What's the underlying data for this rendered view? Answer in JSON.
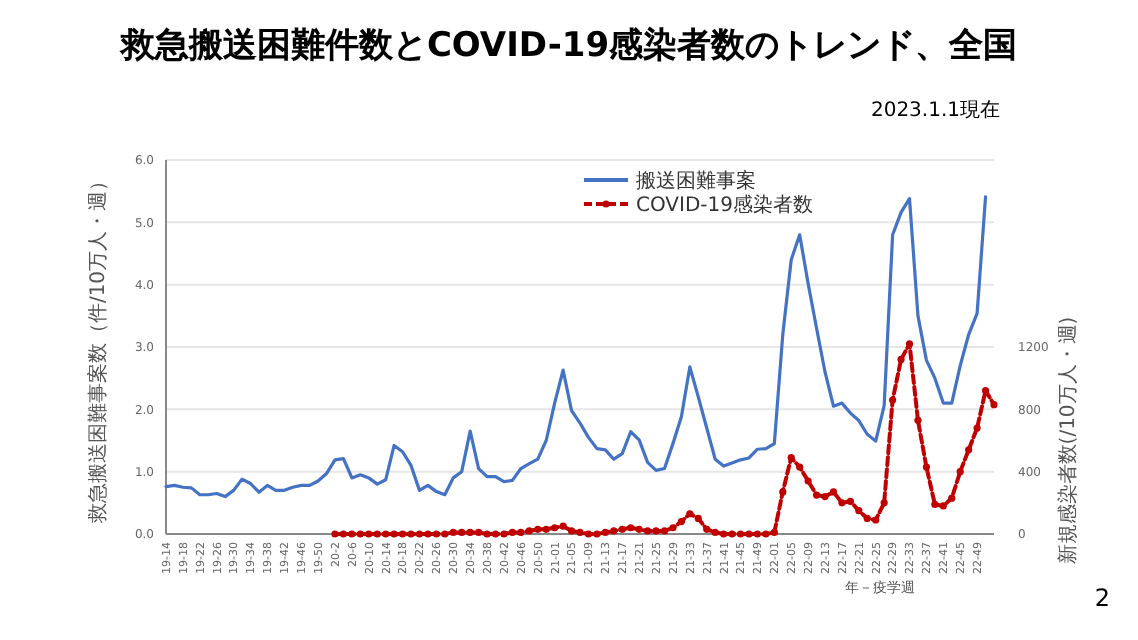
{
  "chart_data": {
    "type": "line",
    "title": "救急搬送困難件数とCOVID-19感染者数のトレンド、全国",
    "annotations": [
      "2023.1.1現在",
      "2"
    ],
    "xlabel": "年－疫学週",
    "ylabel": "救急搬送困難事案数（件/10万人・週）",
    "y2label": "新規感染者数(/10万人・週)",
    "categories": [
      "19-14",
      null,
      "19-18",
      null,
      "19-22",
      null,
      "19-26",
      null,
      "19-30",
      null,
      "19-34",
      null,
      "19-38",
      null,
      "19-42",
      null,
      "19-46",
      null,
      "19-50",
      null,
      "20-2",
      null,
      "20-6",
      null,
      "20-10",
      null,
      "20-14",
      null,
      "20-18",
      null,
      "20-22",
      null,
      "20-26",
      null,
      "20-30",
      null,
      "20-34",
      null,
      "20-38",
      null,
      "20-42",
      null,
      "20-46",
      null,
      "20-50",
      null,
      "21-01",
      null,
      "21-05",
      null,
      "21-09",
      null,
      "21-13",
      null,
      "21-17",
      null,
      "21-21",
      null,
      "21-25",
      null,
      "21-29",
      null,
      "21-33",
      null,
      "21-37",
      null,
      "21-41",
      null,
      "21-45",
      null,
      "21-49",
      null,
      "22-01",
      null,
      "22-05",
      null,
      "22-09",
      null,
      "22-13",
      null,
      "22-17",
      null,
      "22-21",
      null,
      "22-25",
      null,
      "22-29",
      null,
      "22-33",
      null,
      "22-37",
      null,
      "22-41",
      null,
      "22-45",
      null,
      "22-49",
      null,
      null
    ],
    "ylim": [
      0,
      6
    ],
    "yticks": [
      {
        "value": 0,
        "label": "0.0"
      },
      {
        "value": 1,
        "label": "1.0"
      },
      {
        "value": 2,
        "label": "2.0"
      },
      {
        "value": 3,
        "label": "3.0"
      },
      {
        "value": 4,
        "label": "4.0"
      },
      {
        "value": 5,
        "label": "5.0"
      },
      {
        "value": 6,
        "label": "6.0"
      }
    ],
    "y2lim": [
      0,
      2400
    ],
    "y2ticks": [
      0,
      400,
      800,
      1200
    ],
    "grid": "y",
    "legend": "top right",
    "series": [
      {
        "name": "搬送困難事案",
        "color": "#4472c4",
        "line_style": "solid",
        "marker": "none",
        "values": [
          0.76,
          0.78,
          0.75,
          0.74,
          0.63,
          0.63,
          0.65,
          0.6,
          0.7,
          0.88,
          0.81,
          0.67,
          0.78,
          0.7,
          0.7,
          0.75,
          0.78,
          0.78,
          0.85,
          0.97,
          1.19,
          1.21,
          0.9,
          0.95,
          0.9,
          0.8,
          0.87,
          1.42,
          1.32,
          1.1,
          0.7,
          0.78,
          0.68,
          0.63,
          0.9,
          1.0,
          1.65,
          1.05,
          0.92,
          0.92,
          0.84,
          0.86,
          1.05,
          1.13,
          1.2,
          1.5,
          2.1,
          2.63,
          1.98,
          1.78,
          1.55,
          1.37,
          1.35,
          1.2,
          1.29,
          1.64,
          1.51,
          1.15,
          1.02,
          1.05,
          1.45,
          1.88,
          2.68,
          2.2,
          1.7,
          1.2,
          1.09,
          1.14,
          1.19,
          1.22,
          1.36,
          1.37,
          1.45,
          3.2,
          4.4,
          4.8,
          4.02,
          3.3,
          2.6,
          2.05,
          2.1,
          1.94,
          1.82,
          1.6,
          1.49,
          2.06,
          4.8,
          5.16,
          5.38,
          3.5,
          2.79,
          2.5,
          2.1,
          2.1,
          2.7,
          3.2,
          3.54,
          5.41,
          null
        ]
      },
      {
        "name": "COVID-19感染者数",
        "color": "#c00000",
        "axis": "y2",
        "line_style": "dashed",
        "marker": "circle",
        "values": [
          null,
          null,
          null,
          null,
          null,
          null,
          null,
          null,
          null,
          null,
          null,
          null,
          null,
          null,
          null,
          null,
          null,
          null,
          null,
          null,
          0,
          0,
          0,
          0,
          0,
          0,
          0,
          0,
          0,
          0,
          0,
          0,
          0,
          0,
          10,
          10,
          10,
          10,
          0,
          0,
          0,
          10,
          10,
          20,
          30,
          30,
          40,
          50,
          20,
          10,
          0,
          0,
          10,
          20,
          30,
          40,
          30,
          20,
          20,
          20,
          40,
          80,
          130,
          100,
          30,
          10,
          0,
          0,
          0,
          0,
          0,
          0,
          10,
          270,
          490,
          430,
          340,
          250,
          240,
          270,
          200,
          210,
          150,
          100,
          90,
          200,
          860,
          1120,
          1220,
          730,
          430,
          190,
          180,
          230,
          400,
          540,
          680,
          920,
          830
        ]
      }
    ]
  }
}
